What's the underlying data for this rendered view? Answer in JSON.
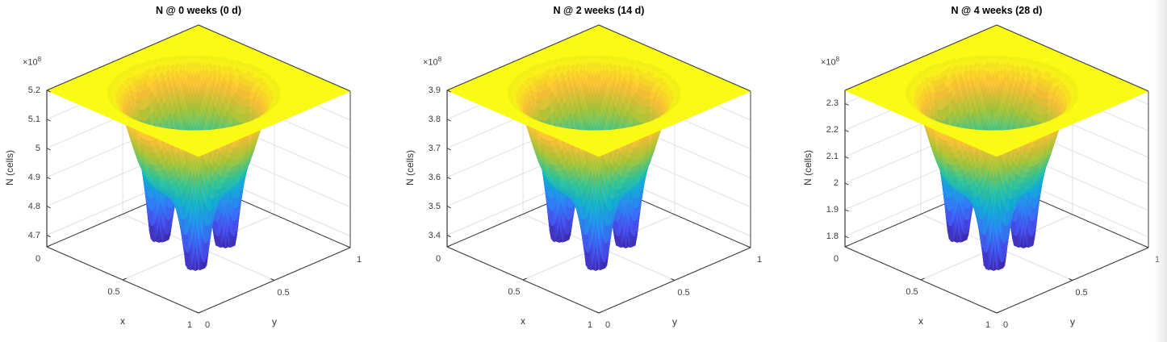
{
  "figure": {
    "background": "#ffffff"
  },
  "colors": {
    "axis_line": "#3a3a3a",
    "box_edge": "#3f3f3f",
    "grid_line": "#e0e0e0",
    "tick_text": "#3d3d3d",
    "title_text": "#000000",
    "plateau_yellow": "#f9fb15",
    "well_bottom_blue": "#3e26a8"
  },
  "chart_data": {
    "type": "surface",
    "description": "Three 3D surface plots of tumor cell count N(x,y) over the unit square at successive times; flat plateau with a central crater containing three deep wells, parula colormap.",
    "colormap": "parula",
    "parula_anchors": [
      "#3E26A8",
      "#4852F4",
      "#2E87F7",
      "#12B1D6",
      "#37C897",
      "#ABC739",
      "#FEC338",
      "#F9FB15"
    ],
    "surface_model": {
      "plateau_normalized": 1.0,
      "crater": {
        "center": [
          0.5,
          0.47
        ],
        "radius": 0.31,
        "depth": 0.6,
        "power": 6
      },
      "wells": {
        "centers": [
          [
            0.3,
            0.44
          ],
          [
            0.64,
            0.345
          ],
          [
            0.56,
            0.62
          ]
        ],
        "sigma": 0.062,
        "depth": 0.78
      },
      "grid_n": 96,
      "color_bands": 56
    },
    "view": {
      "azimuth_deg": -45,
      "elevation_deg": 25,
      "grid": true
    },
    "panels": [
      {
        "title": "N @ 0 weeks (0 d)",
        "xlabel": "x",
        "ylabel": "y",
        "zlabel": "N (cells)",
        "z_exponent": {
          "base": "×10",
          "power": "8"
        },
        "xlim": [
          0,
          1
        ],
        "ylim": [
          0,
          1
        ],
        "zlim": [
          4.66,
          5.2
        ],
        "x_tick_values": [
          0,
          0.5,
          1
        ],
        "x_tick_labels": [
          "0",
          "0.5",
          "1"
        ],
        "y_tick_values": [
          0,
          0.5,
          1
        ],
        "y_tick_labels": [
          "0",
          "0.5",
          "1"
        ],
        "z_tick_values": [
          4.7,
          4.8,
          4.9,
          5.0,
          5.1,
          5.2
        ],
        "z_tick_labels": [
          "4.7",
          "4.8",
          "4.9",
          "5",
          "5.1",
          "5.2"
        ],
        "plateau_value_x1e8": 5.2,
        "well_min_value_x1e8": 4.66
      },
      {
        "title": "N @ 2 weeks (14 d)",
        "xlabel": "x",
        "ylabel": "y",
        "zlabel": "N (cells)",
        "z_exponent": {
          "base": "×10",
          "power": "8"
        },
        "xlim": [
          0,
          1
        ],
        "ylim": [
          0,
          1
        ],
        "zlim": [
          3.36,
          3.9
        ],
        "x_tick_values": [
          0,
          0.5,
          1
        ],
        "x_tick_labels": [
          "0",
          "0.5",
          "1"
        ],
        "y_tick_values": [
          0,
          0.5,
          1
        ],
        "y_tick_labels": [
          "0",
          "0.5",
          "1"
        ],
        "z_tick_values": [
          3.4,
          3.5,
          3.6,
          3.7,
          3.8,
          3.9
        ],
        "z_tick_labels": [
          "3.4",
          "3.5",
          "3.6",
          "3.7",
          "3.8",
          "3.9"
        ],
        "plateau_value_x1e8": 3.9,
        "well_min_value_x1e8": 3.36
      },
      {
        "title": "N @ 4 weeks (28 d)",
        "xlabel": "x",
        "ylabel": "y",
        "zlabel": "N (cells)",
        "z_exponent": {
          "base": "×10",
          "power": "8"
        },
        "xlim": [
          0,
          1
        ],
        "ylim": [
          0,
          1
        ],
        "zlim": [
          1.76,
          2.35
        ],
        "x_tick_values": [
          0,
          0.5,
          1
        ],
        "x_tick_labels": [
          "0",
          "0.5",
          "1"
        ],
        "y_tick_values": [
          0,
          0.5,
          1
        ],
        "y_tick_labels": [
          "0",
          "0.5",
          "1"
        ],
        "z_tick_values": [
          1.8,
          1.9,
          2.0,
          2.1,
          2.2,
          2.3
        ],
        "z_tick_labels": [
          "1.8",
          "1.9",
          "2",
          "2.1",
          "2.2",
          "2.3"
        ],
        "plateau_value_x1e8": 2.35,
        "well_min_value_x1e8": 1.76
      }
    ]
  }
}
